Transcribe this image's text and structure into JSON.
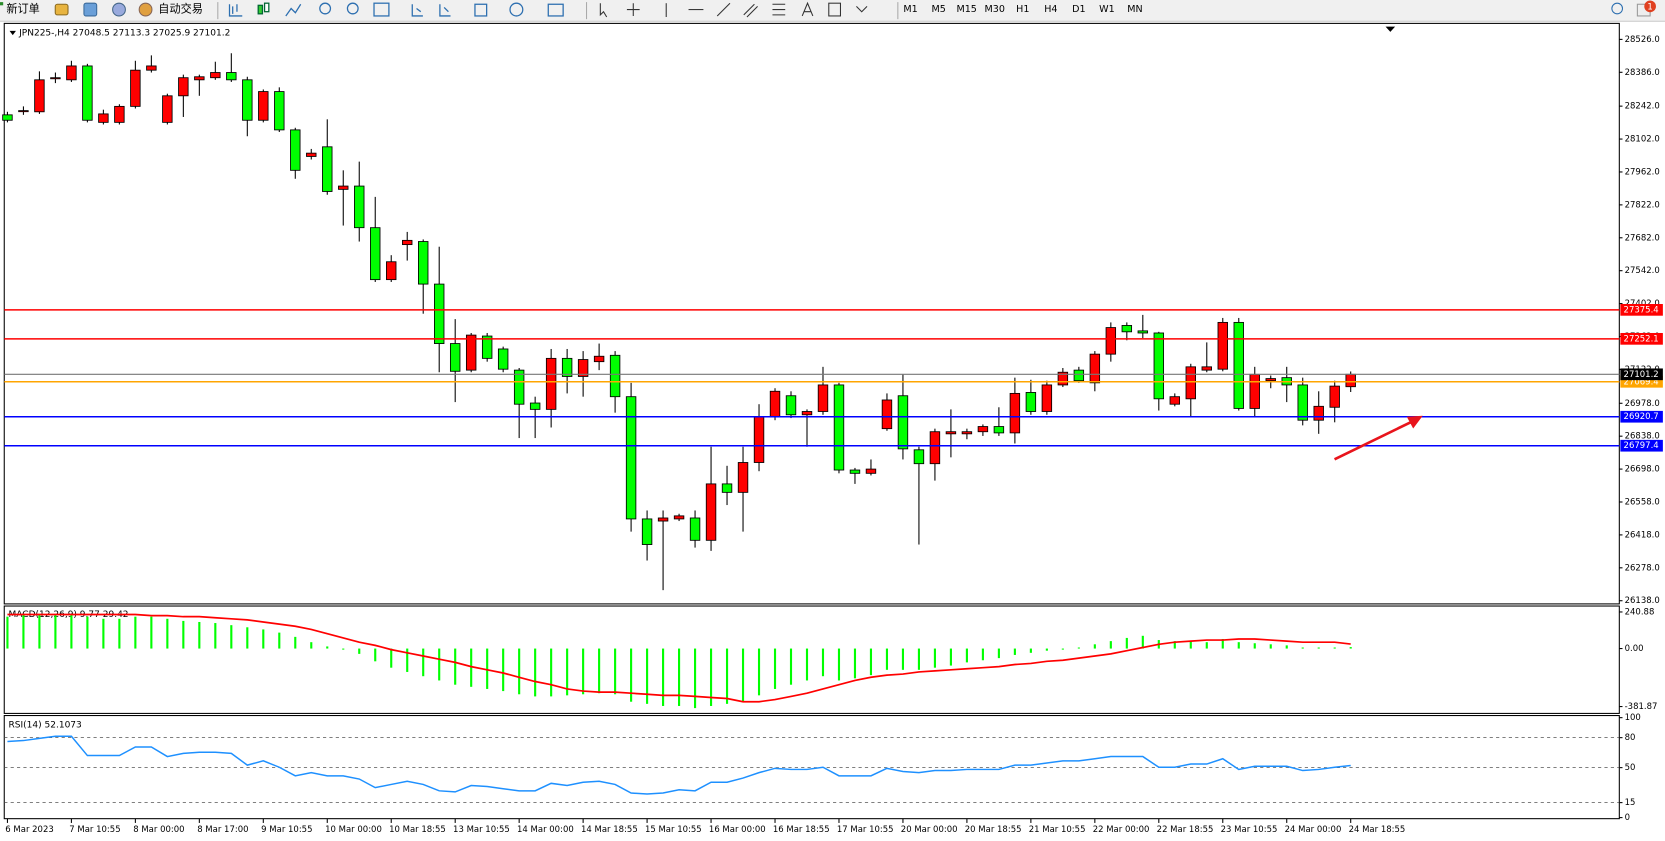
{
  "toolbar": {
    "new_order": "新订单",
    "auto_trading": "自动交易",
    "timeframes": [
      "M1",
      "M5",
      "M15",
      "M30",
      "H1",
      "H4",
      "D1",
      "W1",
      "MN"
    ],
    "notifications": 1
  },
  "chart_data": [
    {
      "type": "candlestick",
      "title": "JPN225-,H4  27048.5 27113.3 27025.9 27101.2",
      "categories": [
        "6 Mar 2023",
        null,
        null,
        null,
        "7 Mar 10:55",
        null,
        null,
        null,
        "8 Mar 00:00",
        null,
        null,
        null,
        "8 Mar 17:00",
        null,
        null,
        null,
        "9 Mar 10:55",
        null,
        null,
        null,
        "10 Mar 00:00",
        null,
        null,
        null,
        "10 Mar 18:55",
        null,
        null,
        null,
        "13 Mar 10:55",
        null,
        null,
        null,
        "14 Mar 00:00",
        null,
        null,
        null,
        "14 Mar 18:55",
        null,
        null,
        null,
        "15 Mar 10:55",
        null,
        null,
        null,
        "16 Mar 00:00",
        null,
        null,
        null,
        "16 Mar 18:55",
        null,
        null,
        null,
        "17 Mar 10:55",
        null,
        null,
        null,
        "20 Mar 00:00",
        null,
        null,
        null,
        "20 Mar 18:55",
        null,
        null,
        null,
        "21 Mar 10:55",
        null,
        null,
        null,
        "22 Mar 00:00",
        null,
        null,
        null,
        "22 Mar 18:55",
        null,
        null,
        null,
        "23 Mar 10:55",
        null,
        null,
        null,
        "24 Mar 00:00",
        null,
        null,
        null,
        "24 Mar 18:55"
      ],
      "open": [
        28205,
        28221,
        28218,
        28361,
        28354,
        28413,
        28173,
        28173,
        28241,
        28395,
        28173,
        28286,
        28354,
        28363,
        28385,
        28354,
        28182,
        28304,
        28141,
        28028,
        28069,
        27888,
        27902,
        27725,
        27504,
        27653,
        27666,
        27485,
        27232,
        27119,
        27264,
        27209,
        27119,
        26979,
        26952,
        27169,
        27092,
        27155,
        27182,
        27006,
        26486,
        26477,
        26486,
        26490,
        26395,
        26635,
        26599,
        26726,
        26920,
        27010,
        26929,
        26943,
        27056,
        26694,
        26680,
        26870,
        27010,
        26780,
        26721,
        26848,
        26848,
        26857,
        26879,
        26852,
        27024,
        26943,
        27056,
        27119,
        27065,
        27187,
        27309,
        27286,
        27277,
        26974,
        26997,
        27119,
        27123,
        27322,
        26956,
        27074,
        27087,
        27056,
        26906,
        26961,
        27048.5
      ],
      "high": [
        28218,
        28241,
        28390,
        28385,
        28435,
        28422,
        28227,
        28250,
        28435,
        28458,
        28295,
        28376,
        28376,
        28431,
        28467,
        28367,
        28313,
        28322,
        28150,
        28060,
        28186,
        27969,
        28006,
        27856,
        27608,
        27707,
        27675,
        27644,
        27336,
        27277,
        27277,
        27219,
        27128,
        27006,
        27209,
        27209,
        27200,
        27232,
        27200,
        27065,
        26522,
        26522,
        26508,
        26522,
        26793,
        26712,
        26793,
        26974,
        27042,
        27029,
        26952,
        27133,
        27065,
        26703,
        26739,
        27020,
        27101,
        26793,
        26870,
        26952,
        26870,
        26888,
        26961,
        27087,
        27078,
        27074,
        27128,
        27133,
        27200,
        27322,
        27322,
        27354,
        27282,
        27020,
        27146,
        27237,
        27341,
        27341,
        27133,
        27096,
        27133,
        27087,
        27029,
        27074,
        27113.3
      ],
      "low": [
        28173,
        28205,
        28209,
        28340,
        28345,
        28173,
        28164,
        28164,
        28232,
        28385,
        28164,
        28196,
        28286,
        28354,
        28345,
        28114,
        28173,
        28132,
        27933,
        28015,
        27865,
        27734,
        27666,
        27494,
        27494,
        27585,
        27359,
        27110,
        26983,
        27110,
        27155,
        27110,
        26830,
        26830,
        26875,
        27020,
        27006,
        27119,
        26938,
        26432,
        26309,
        26183,
        26477,
        26364,
        26350,
        26545,
        26432,
        26689,
        26906,
        26915,
        26793,
        26929,
        26680,
        26635,
        26671,
        26861,
        26739,
        26377,
        26649,
        26748,
        26825,
        26839,
        26839,
        26807,
        26929,
        26929,
        27047,
        27065,
        27029,
        27155,
        27246,
        27255,
        26947,
        26965,
        26920,
        27110,
        27114,
        26947,
        26920,
        27042,
        26983,
        26884,
        26848,
        26897,
        27025.9
      ],
      "close": [
        28182,
        28223,
        28354,
        28363,
        28413,
        28182,
        28209,
        28241,
        28395,
        28413,
        28286,
        28363,
        28367,
        28385,
        28354,
        28182,
        28304,
        28141,
        27969,
        28042,
        27879,
        27902,
        27725,
        27504,
        27580,
        27671,
        27485,
        27232,
        27114,
        27268,
        27169,
        27123,
        26974,
        26952,
        27169,
        27092,
        27164,
        27178,
        27006,
        26486,
        26377,
        26490,
        26499,
        26395,
        26635,
        26599,
        26726,
        26920,
        27029,
        26929,
        26943,
        27056,
        26694,
        26680,
        26698,
        26992,
        26784,
        26721,
        26857,
        26857,
        26857,
        26879,
        26852,
        27020,
        26943,
        27056,
        27110,
        27074,
        27187,
        27300,
        27282,
        27277,
        26997,
        27006,
        27133,
        27133,
        27322,
        26956,
        27101,
        27083,
        27056,
        26906,
        26965,
        27051,
        27101.2
      ],
      "up_color": "#ff0000",
      "down_color": "#00ff00",
      "ylim": [
        26129,
        28585
      ],
      "yticks": [
        {
          "value": 28526,
          "label": "28526.0"
        },
        {
          "value": 28386,
          "label": "28386.0"
        },
        {
          "value": 28242,
          "label": "28242.0"
        },
        {
          "value": 28102,
          "label": "28102.0"
        },
        {
          "value": 27962,
          "label": "27962.0"
        },
        {
          "value": 27822,
          "label": "27822.0"
        },
        {
          "value": 27682,
          "label": "27682.0"
        },
        {
          "value": 27542,
          "label": "27542.0"
        },
        {
          "value": 27402,
          "label": "27402.0"
        },
        {
          "value": 27262,
          "label": "27262.0"
        },
        {
          "value": 27122,
          "label": "27122.0"
        },
        {
          "value": 26978,
          "label": "26978.0"
        },
        {
          "value": 26838,
          "label": "26838.0"
        },
        {
          "value": 26698,
          "label": "26698.0"
        },
        {
          "value": 26558,
          "label": "26558.0"
        },
        {
          "value": 26418,
          "label": "26418.0"
        },
        {
          "value": 26278,
          "label": "26278.0"
        },
        {
          "value": 26138,
          "label": "26138.0"
        }
      ],
      "levels": [
        {
          "value": 27375.4,
          "color": "#ff0000"
        },
        {
          "value": 27252.1,
          "color": "#ff0000"
        },
        {
          "value": 27069.4,
          "color": "#ffa500"
        },
        {
          "value": 27101.2,
          "color": "#000000"
        },
        {
          "value": 26920.7,
          "color": "#0000ff"
        },
        {
          "value": 26797.4,
          "color": "#0000ff"
        }
      ],
      "grid": false
    },
    {
      "type": "macd",
      "title": "MACD(12,26,9) 9.77 29.42",
      "values": [
        210,
        224,
        224,
        224,
        224,
        210,
        196,
        196,
        210,
        210,
        196,
        182,
        175,
        168,
        154,
        140,
        126,
        105,
        77,
        42,
        14,
        -7,
        -35,
        -84,
        -126,
        -154,
        -182,
        -210,
        -238,
        -252,
        -266,
        -280,
        -301,
        -315,
        -315,
        -308,
        -301,
        -294,
        -301,
        -350,
        -364,
        -378,
        -378,
        -392,
        -378,
        -364,
        -350,
        -308,
        -266,
        -238,
        -210,
        -182,
        -210,
        -196,
        -175,
        -140,
        -140,
        -140,
        -126,
        -112,
        -91,
        -77,
        -63,
        -42,
        -28,
        -14,
        -7,
        7,
        28,
        49,
        70,
        84,
        56,
        49,
        49,
        42,
        63,
        42,
        35,
        28,
        21,
        7,
        7,
        7,
        9.77
      ],
      "signal": [
        224,
        224,
        224,
        224,
        224,
        224,
        224,
        224,
        224,
        217,
        217,
        210,
        210,
        203,
        196,
        189,
        175,
        161,
        147,
        126,
        98,
        70,
        42,
        21,
        -7,
        -28,
        -49,
        -70,
        -91,
        -119,
        -140,
        -161,
        -189,
        -217,
        -238,
        -266,
        -280,
        -287,
        -287,
        -294,
        -301,
        -308,
        -308,
        -315,
        -322,
        -329,
        -350,
        -350,
        -336,
        -315,
        -294,
        -266,
        -238,
        -210,
        -189,
        -175,
        -168,
        -154,
        -147,
        -140,
        -133,
        -126,
        -119,
        -105,
        -98,
        -84,
        -77,
        -63,
        -49,
        -35,
        -14,
        7,
        28,
        42,
        49,
        56,
        56,
        63,
        63,
        56,
        49,
        42,
        42,
        42,
        29.42
      ],
      "color": "#00ff00",
      "signal_color": "#ff0000",
      "ylim": [
        -420,
        266
      ],
      "yticks": [
        240.88,
        {
          "value": 0,
          "label": "0.00"
        },
        -381.87
      ]
    },
    {
      "type": "line",
      "title": "RSI(14) 52.1073",
      "values": [
        76.1,
        77.1,
        79.3,
        81.4,
        81.4,
        62.1,
        62.1,
        62.1,
        70.7,
        70.7,
        61.1,
        64.3,
        65.4,
        65.4,
        64.3,
        52.5,
        56.8,
        50.4,
        41.8,
        45.0,
        41.8,
        41.8,
        38.6,
        30.0,
        33.2,
        36.4,
        33.2,
        26.8,
        25.7,
        32.1,
        31.1,
        28.9,
        26.8,
        26.8,
        34.3,
        32.1,
        35.4,
        36.4,
        33.2,
        24.6,
        23.6,
        24.6,
        27.9,
        26.8,
        35.4,
        35.4,
        39.6,
        45.0,
        49.3,
        48.2,
        48.2,
        50.4,
        41.8,
        41.8,
        41.8,
        49.3,
        46.1,
        45.0,
        47.1,
        47.1,
        48.2,
        48.2,
        48.2,
        52.5,
        52.5,
        54.6,
        56.8,
        56.8,
        58.9,
        61.1,
        61.1,
        61.1,
        50.4,
        50.4,
        53.6,
        53.6,
        58.9,
        48.2,
        51.4,
        51.4,
        51.4,
        47.1,
        48.2,
        50.4,
        52.1073
      ],
      "color": "#1e90ff",
      "ylim": [
        0,
        100
      ],
      "yticks": [
        100,
        80,
        50,
        15,
        0
      ]
    }
  ]
}
